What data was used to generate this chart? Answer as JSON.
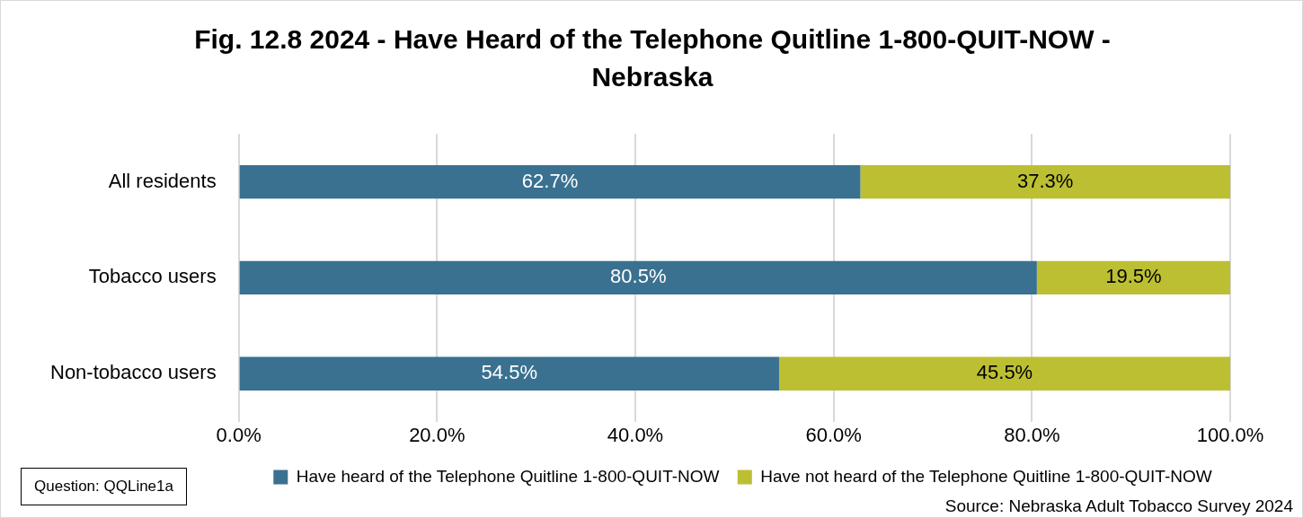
{
  "chart_data": {
    "type": "bar",
    "orientation": "horizontal",
    "stacked": true,
    "title": "Fig. 12.8  2024 - Have Heard of the Telephone Quitline 1-800-QUIT-NOW - Nebraska",
    "categories": [
      "All residents",
      "Tobacco users",
      "Non-tobacco users"
    ],
    "series": [
      {
        "name": "Have heard of the Telephone Quitline 1-800-QUIT-NOW",
        "color": "#3a7190",
        "values": [
          62.7,
          80.5,
          54.5
        ],
        "value_labels": [
          "62.7%",
          "80.5%",
          "54.5%"
        ]
      },
      {
        "name": "Have not heard of the Telephone Quitline 1-800-QUIT-NOW",
        "color": "#bcbf32",
        "values": [
          37.3,
          19.5,
          45.5
        ],
        "value_labels": [
          "37.3%",
          "19.5%",
          "45.5%"
        ]
      }
    ],
    "xlim": [
      0,
      100
    ],
    "xticks": [
      {
        "value": 0,
        "label": "0.0%"
      },
      {
        "value": 20,
        "label": "20.0%"
      },
      {
        "value": 40,
        "label": "40.0%"
      },
      {
        "value": 60,
        "label": "60.0%"
      },
      {
        "value": 80,
        "label": "80.0%"
      },
      {
        "value": 100,
        "label": "100.0%"
      }
    ],
    "grid": "x",
    "legend": "bottom",
    "annotations": [
      "Question: QQLine1a",
      "Source: Nebraska Adult Tobacco Survey 2024"
    ]
  }
}
